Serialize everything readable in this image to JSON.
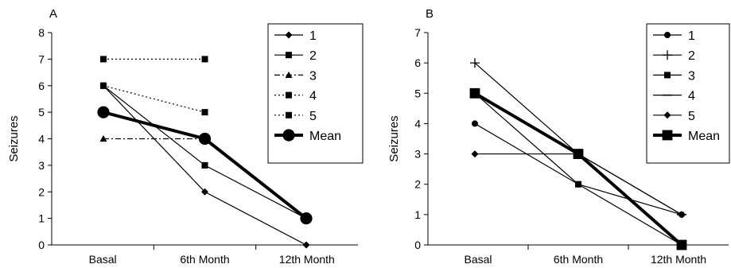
{
  "chart_data": [
    {
      "panel_label": "A",
      "type": "line",
      "ylabel": "Seizures",
      "xlabel": "",
      "categories": [
        "Basal",
        "6th Month",
        "12th Month"
      ],
      "ylim": [
        0,
        8
      ],
      "yticks": [
        0,
        1,
        2,
        3,
        4,
        5,
        6,
        7,
        8
      ],
      "grid": false,
      "legend_position": "top-right",
      "series": [
        {
          "name": "1",
          "values": [
            6,
            2,
            0
          ],
          "marker": "diamond",
          "line": "solid",
          "emphasis": false
        },
        {
          "name": "2",
          "values": [
            6,
            3,
            1
          ],
          "marker": "square",
          "line": "solid",
          "emphasis": false
        },
        {
          "name": "3",
          "values": [
            4,
            4,
            null
          ],
          "marker": "triangle",
          "line": "dashdot",
          "emphasis": false
        },
        {
          "name": "4",
          "values": [
            7,
            7,
            null
          ],
          "marker": "square",
          "line": "dotted",
          "emphasis": false
        },
        {
          "name": "5",
          "values": [
            6,
            5,
            null
          ],
          "marker": "square",
          "line": "dotted",
          "emphasis": false
        },
        {
          "name": "Mean",
          "values": [
            5,
            4,
            1
          ],
          "marker": "circle",
          "line": "solid",
          "emphasis": true
        }
      ]
    },
    {
      "panel_label": "B",
      "type": "line",
      "ylabel": "Seizures",
      "xlabel": "",
      "categories": [
        "Basal",
        "6th Month",
        "12th Month"
      ],
      "ylim": [
        0,
        7
      ],
      "yticks": [
        0,
        1,
        2,
        3,
        4,
        5,
        6,
        7
      ],
      "grid": false,
      "legend_position": "top-right",
      "series": [
        {
          "name": "1",
          "values": [
            4,
            2,
            1
          ],
          "marker": "circle",
          "line": "solid",
          "emphasis": false
        },
        {
          "name": "2",
          "values": [
            6,
            3,
            0
          ],
          "marker": "plus",
          "line": "solid",
          "emphasis": false
        },
        {
          "name": "3",
          "values": [
            5,
            2,
            0
          ],
          "marker": "square",
          "line": "solid",
          "emphasis": false
        },
        {
          "name": "4",
          "values": [
            5,
            3,
            1
          ],
          "marker": "dash",
          "line": "solid",
          "emphasis": false
        },
        {
          "name": "5",
          "values": [
            3,
            3,
            1
          ],
          "marker": "diamond",
          "line": "solid",
          "emphasis": false
        },
        {
          "name": "Mean",
          "values": [
            5,
            3,
            0
          ],
          "marker": "square",
          "line": "solid",
          "emphasis": true
        }
      ]
    }
  ]
}
